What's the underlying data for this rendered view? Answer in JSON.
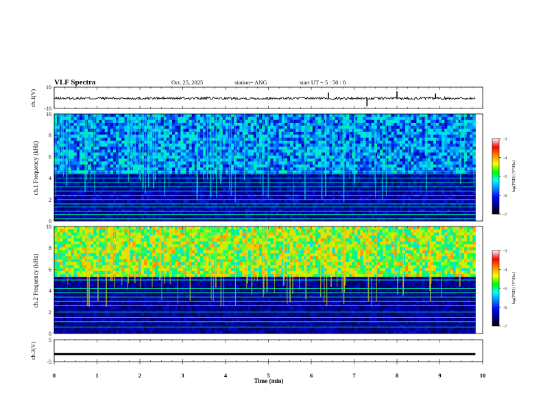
{
  "header": {
    "title": "VLF Spectra",
    "date": "Oct. 25, 2025",
    "station": "station= ANG",
    "start": "start  UT =   5  : 50 : 0"
  },
  "colorbar": {
    "label": "log(PSD) (V²/Hz)",
    "ticks": [
      "-3",
      "-4",
      "-5",
      "-6",
      "-7"
    ],
    "colors": [
      "#ffffff",
      "#ff0000",
      "#ff8800",
      "#ffff00",
      "#00ff00",
      "#00ffff",
      "#0080ff",
      "#0000ff",
      "#000080",
      "#000000"
    ]
  },
  "chart_data": [
    {
      "type": "line",
      "name": "ch1-waveform",
      "ylabel": "ch.1(V)",
      "x_range_min": [
        0,
        10
      ],
      "ylim": [
        -10,
        10
      ],
      "y_ticks": [
        "10",
        "-10"
      ],
      "baseline": -0.5,
      "spikes": [
        {
          "x": 6.4,
          "y": 5
        },
        {
          "x": 7.3,
          "y": -8
        },
        {
          "x": 8.0,
          "y": 6
        },
        {
          "x": 8.9,
          "y": 4
        }
      ]
    },
    {
      "type": "heatmap",
      "name": "ch1-spectrogram",
      "ylabel": "ch.1 Frequency (kHz)",
      "x_range_min": [
        0,
        10
      ],
      "data_extent_min": 9.83,
      "ylim": [
        0,
        10
      ],
      "y_ticks": [
        "0",
        "2",
        "4",
        "6",
        "8",
        "10"
      ],
      "zlim": [
        -7,
        -3
      ],
      "background_log_psd": -6.5,
      "upper_band_log_psd": -5.6,
      "upper_band_khz": [
        4.7,
        10
      ],
      "lines_khz": [
        0.2,
        0.6,
        0.9,
        1.3,
        1.6,
        2.0,
        2.4,
        2.8,
        3.2,
        3.6,
        4.0,
        4.4,
        4.6
      ]
    },
    {
      "type": "heatmap",
      "name": "ch2-spectrogram",
      "ylabel": "ch.2 Frequency (kHz)",
      "x_range_min": [
        0,
        10
      ],
      "data_extent_min": 9.83,
      "ylim": [
        0,
        10
      ],
      "y_ticks": [
        "0",
        "2",
        "4",
        "6",
        "8",
        "10"
      ],
      "zlim": [
        -7,
        -3
      ],
      "background_log_psd": -6.6,
      "upper_band_log_psd": -4.3,
      "upper_band_khz": [
        5.5,
        10
      ],
      "lines_khz": [
        0.6,
        1.1,
        1.5,
        2.0,
        2.6,
        3.0,
        3.4,
        3.8,
        4.2,
        5.0
      ]
    },
    {
      "type": "line",
      "name": "ch3-waveform",
      "ylabel": "ch.3(V)",
      "xlabel": "Time  (min)",
      "x_range_min": [
        0,
        10
      ],
      "x_ticks": [
        "0",
        "1",
        "2",
        "3",
        "4",
        "5",
        "6",
        "7",
        "8",
        "9",
        "10"
      ],
      "ylim": [
        -5,
        5
      ],
      "y_ticks": [
        "5",
        "-5"
      ],
      "baseline": -1.5
    }
  ]
}
